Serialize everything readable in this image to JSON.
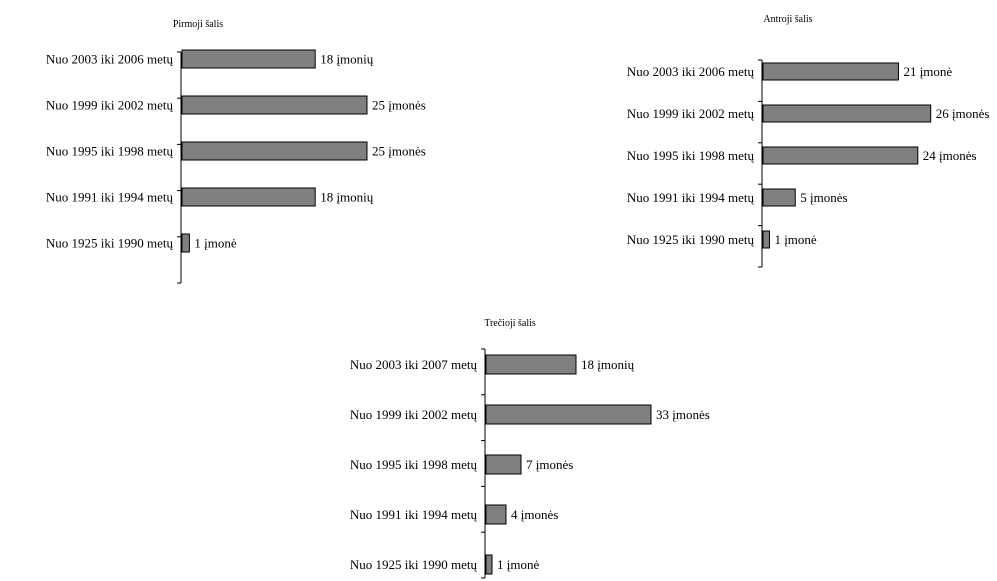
{
  "colors": {
    "bar": "#808080",
    "bar_stroke": "#000000",
    "background": "#ffffff"
  },
  "chart_data": [
    {
      "type": "bar",
      "orientation": "horizontal",
      "title": "Pirmoji šalis",
      "categories": [
        "Nuo 2003 iki 2006 metų",
        "Nuo 1999 iki 2002 metų",
        "Nuo 1995 iki 1998 metų",
        "Nuo 1991 iki 1994 metų",
        "Nuo 1925 iki 1990 metų"
      ],
      "values": [
        18,
        25,
        25,
        18,
        1
      ],
      "value_labels": [
        "18 įmonių",
        "25 įmonės",
        "25 įmonės",
        "18 įmonių",
        "1 įmonė"
      ],
      "xlim": [
        0,
        25
      ],
      "grid": false,
      "legend": "none"
    },
    {
      "type": "bar",
      "orientation": "horizontal",
      "title": "Antroji šalis",
      "categories": [
        "Nuo 2003 iki 2006 metų",
        "Nuo 1999 iki 2002 metų",
        "Nuo 1995 iki 1998 metų",
        "Nuo 1991 iki 1994 metų",
        "Nuo 1925 iki 1990 metų"
      ],
      "values": [
        21,
        26,
        24,
        5,
        1
      ],
      "value_labels": [
        "21 įmonė",
        "26 įmonės",
        "24 įmonės",
        "5 įmonės",
        "1 įmonė"
      ],
      "xlim": [
        0,
        26
      ],
      "grid": false,
      "legend": "none"
    },
    {
      "type": "bar",
      "orientation": "horizontal",
      "title": "Trečioji šalis",
      "categories": [
        "Nuo 2003 iki 2007 metų",
        "Nuo 1999 iki 2002 metų",
        "Nuo 1995 iki 1998 metų",
        "Nuo 1991 iki 1994 metų",
        "Nuo 1925 iki 1990 metų"
      ],
      "values": [
        18,
        33,
        7,
        4,
        1
      ],
      "value_labels": [
        "18 įmonių",
        "33 įmonės",
        "7 įmonės",
        "4 įmonės",
        "1 įmonė"
      ],
      "xlim": [
        0,
        33
      ],
      "grid": false,
      "legend": "none"
    }
  ]
}
